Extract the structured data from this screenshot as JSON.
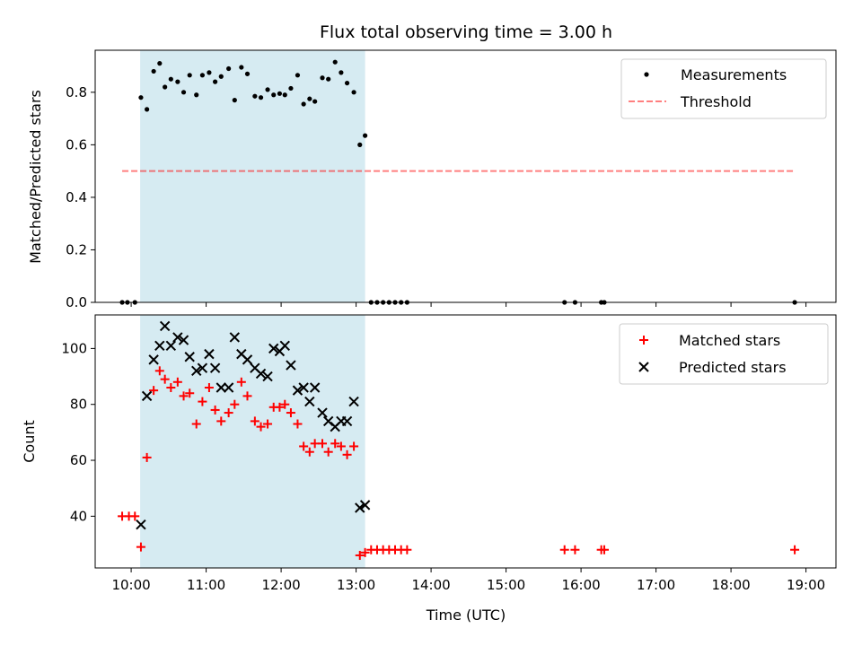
{
  "chart_data": {
    "type": "scatter",
    "title": "Flux total observing time = 3.00 h",
    "xlabel": "Time (UTC)",
    "x_unit": "hours UTC",
    "xlim": [
      9.52,
      19.4
    ],
    "x_ticks": [
      10,
      11,
      12,
      13,
      14,
      15,
      16,
      17,
      18,
      19
    ],
    "x_tick_labels": [
      "10:00",
      "11:00",
      "12:00",
      "13:00",
      "14:00",
      "15:00",
      "16:00",
      "17:00",
      "18:00",
      "19:00"
    ],
    "shaded_interval": [
      10.12,
      13.12
    ],
    "top": {
      "ylabel": "Matched/Predicted stars",
      "ylim": [
        0,
        0.96
      ],
      "y_ticks": [
        0,
        0.2,
        0.4,
        0.6,
        0.8
      ],
      "y_tick_labels": [
        "0.0",
        "0.2",
        "0.4",
        "0.6",
        "0.8"
      ],
      "legend": [
        "Measurements",
        "Threshold"
      ],
      "threshold": {
        "value": 0.5,
        "x_range": [
          9.88,
          18.85
        ]
      },
      "measurements": {
        "x": [
          9.88,
          9.95,
          10.05,
          10.13,
          10.21,
          10.3,
          10.38,
          10.45,
          10.53,
          10.62,
          10.7,
          10.78,
          10.87,
          10.95,
          11.04,
          11.12,
          11.2,
          11.3,
          11.38,
          11.47,
          11.55,
          11.65,
          11.73,
          11.82,
          11.9,
          11.98,
          12.05,
          12.13,
          12.22,
          12.3,
          12.38,
          12.45,
          12.55,
          12.63,
          12.72,
          12.8,
          12.88,
          12.97,
          13.05,
          13.12,
          13.2,
          13.28,
          13.36,
          13.44,
          13.52,
          13.6,
          13.68,
          15.78,
          15.92,
          16.27,
          16.31,
          18.85
        ],
        "y": [
          0.0,
          0.0,
          0.0,
          0.78,
          0.735,
          0.88,
          0.91,
          0.82,
          0.85,
          0.84,
          0.8,
          0.865,
          0.79,
          0.865,
          0.875,
          0.84,
          0.86,
          0.89,
          0.77,
          0.895,
          0.87,
          0.785,
          0.78,
          0.81,
          0.79,
          0.795,
          0.79,
          0.815,
          0.865,
          0.755,
          0.775,
          0.765,
          0.855,
          0.85,
          0.915,
          0.875,
          0.835,
          0.8,
          0.6,
          0.635,
          0.0,
          0.0,
          0.0,
          0.0,
          0.0,
          0.0,
          0.0,
          0.0,
          0.0,
          0.0,
          0.0,
          0.0
        ]
      }
    },
    "bottom": {
      "ylabel": "Count",
      "ylim": [
        21.5,
        112
      ],
      "y_ticks": [
        40,
        60,
        80,
        100
      ],
      "y_tick_labels": [
        "40",
        "60",
        "80",
        "100"
      ],
      "legend": [
        "Matched stars",
        "Predicted stars"
      ],
      "series": [
        {
          "name": "Matched stars",
          "marker": "plus",
          "color": "#ff0000",
          "x": [
            9.88,
            9.97,
            10.05,
            10.13,
            10.21,
            10.3,
            10.38,
            10.45,
            10.53,
            10.62,
            10.7,
            10.78,
            10.87,
            10.95,
            11.04,
            11.12,
            11.2,
            11.3,
            11.38,
            11.47,
            11.55,
            11.65,
            11.73,
            11.82,
            11.9,
            11.98,
            12.05,
            12.13,
            12.22,
            12.3,
            12.38,
            12.45,
            12.55,
            12.63,
            12.72,
            12.8,
            12.88,
            12.97,
            13.05,
            13.12,
            13.2,
            13.28,
            13.36,
            13.44,
            13.52,
            13.6,
            13.68,
            15.78,
            15.92,
            16.27,
            16.31,
            18.85
          ],
          "y": [
            40,
            40,
            40,
            29,
            61,
            85,
            92,
            89,
            86,
            88,
            83,
            84,
            73,
            81,
            86,
            78,
            74,
            77,
            80,
            88,
            83,
            74,
            72,
            73,
            79,
            79,
            80,
            77,
            73,
            65,
            63,
            66,
            66,
            63,
            66,
            65,
            62,
            65,
            26,
            27,
            28,
            28,
            28,
            28,
            28,
            28,
            28,
            28,
            28,
            28,
            28,
            28
          ]
        },
        {
          "name": "Predicted stars",
          "marker": "x",
          "color": "#000000",
          "x": [
            10.13,
            10.21,
            10.3,
            10.38,
            10.45,
            10.53,
            10.62,
            10.7,
            10.78,
            10.87,
            10.95,
            11.04,
            11.12,
            11.2,
            11.3,
            11.38,
            11.47,
            11.55,
            11.65,
            11.73,
            11.82,
            11.9,
            11.98,
            12.05,
            12.13,
            12.22,
            12.3,
            12.38,
            12.45,
            12.55,
            12.63,
            12.72,
            12.8,
            12.88,
            12.97,
            13.05,
            13.12
          ],
          "y": [
            37,
            83,
            96,
            101,
            108,
            101,
            104,
            103,
            97,
            92,
            93,
            98,
            93,
            86,
            86,
            104,
            98,
            96,
            93,
            91,
            90,
            100,
            99,
            101,
            94,
            85,
            86,
            81,
            86,
            77,
            74,
            72,
            74,
            74,
            81,
            43,
            44
          ]
        }
      ]
    }
  }
}
